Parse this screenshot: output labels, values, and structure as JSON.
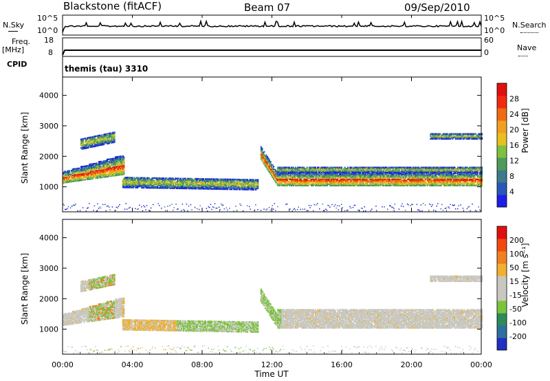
{
  "header": {
    "station": "Blackstone (fitACF)",
    "beam": "Beam 07",
    "date": "09/Sep/2010"
  },
  "summary_panels": {
    "nsky_label": "N.Sky",
    "nsearch_label": "N.Search",
    "nsky_ticks": [
      "10^5",
      "10^0"
    ],
    "nsearch_ticks": [
      "10^5",
      "10^0"
    ],
    "freq_label": "Freq.",
    "freq_unit": "[MHz]",
    "freq_ticks": [
      "18",
      "8"
    ],
    "nave_label": "Nave",
    "nave_ticks": [
      "60",
      "0"
    ],
    "cpid_label": "CPID",
    "cpid_value": "themis (tau) 3310"
  },
  "colors": {
    "power_scale": [
      "#1e1ee6",
      "#2a56b8",
      "#3f7a8c",
      "#4f9a5a",
      "#7fc040",
      "#e6c020",
      "#f0a020",
      "#f06a10",
      "#f02a10",
      "#e01010"
    ],
    "velocity_scale": [
      "#2030c0",
      "#2f6fa0",
      "#2f8a5a",
      "#7ac43c",
      "#c8c8c0",
      "#c8c8c0",
      "#f0b030",
      "#f08020",
      "#f04a10",
      "#e01010"
    ]
  },
  "chart_data": [
    {
      "type": "heatmap",
      "name": "power",
      "ylabel": "Slant Range [km]",
      "xlabel": "",
      "x_ticks": [
        "00:00",
        "04:00",
        "08:00",
        "12:00",
        "16:00",
        "20:00",
        "00:00"
      ],
      "y_ticks": [
        1000,
        2000,
        3000,
        4000
      ],
      "ylim": [
        180,
        4600
      ],
      "xlim_hours": [
        0,
        24
      ],
      "colorbar": {
        "label": "Power [dB]",
        "ticks": [
          "4",
          "8",
          "12",
          "16",
          "20",
          "24",
          "28"
        ],
        "range": [
          0,
          32
        ]
      }
    },
    {
      "type": "heatmap",
      "name": "velocity",
      "ylabel": "Slant Range [km]",
      "xlabel": "Time UT",
      "x_ticks": [
        "00:00",
        "04:00",
        "08:00",
        "12:00",
        "16:00",
        "20:00",
        "00:00"
      ],
      "y_ticks": [
        1000,
        2000,
        3000,
        4000
      ],
      "ylim": [
        180,
        4600
      ],
      "xlim_hours": [
        0,
        24
      ],
      "colorbar": {
        "label": "Velocity [m s⁻¹]",
        "ticks": [
          "200",
          "100",
          "50",
          "15",
          "-15",
          "-50",
          "-100",
          "-200"
        ]
      }
    }
  ]
}
